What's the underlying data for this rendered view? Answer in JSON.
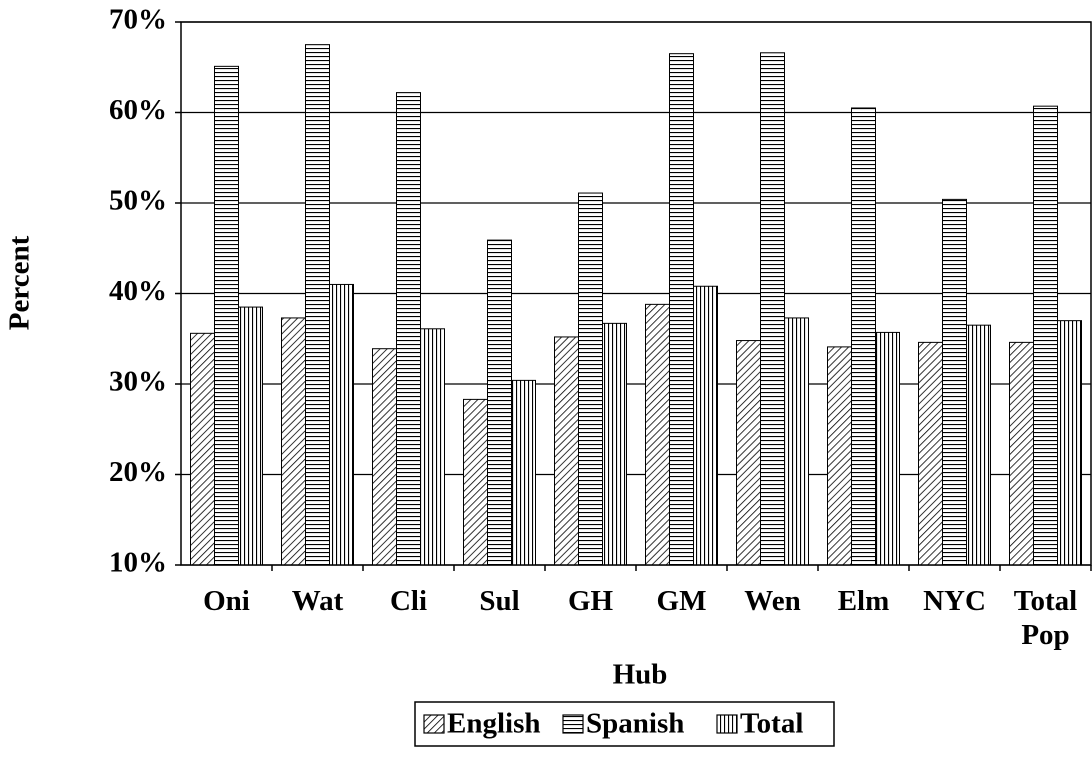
{
  "chart_data": {
    "type": "bar",
    "x_label": "Hub",
    "y_label": "Percent",
    "categories": [
      "Oni",
      "Wat",
      "Cli",
      "Sul",
      "GH",
      "GM",
      "Wen",
      "Elm",
      "NYC",
      "Total Pop"
    ],
    "series": [
      {
        "name": "English",
        "color": "#000000",
        "hatch": "diagonal",
        "values": [
          35.6,
          37.3,
          33.9,
          28.3,
          35.2,
          38.8,
          34.8,
          34.1,
          34.6,
          34.6
        ]
      },
      {
        "name": "Spanish",
        "color": "#000000",
        "hatch": "horizontal",
        "values": [
          65.1,
          67.5,
          62.2,
          45.9,
          51.1,
          66.5,
          66.6,
          60.5,
          50.4,
          60.7
        ]
      },
      {
        "name": "Total",
        "color": "#000000",
        "hatch": "vertical",
        "values": [
          38.5,
          41.0,
          36.1,
          30.4,
          36.7,
          40.8,
          37.3,
          35.7,
          36.5,
          37.0
        ]
      }
    ],
    "ylim": [
      10,
      70
    ],
    "yticks": [
      {
        "value": 10,
        "label": "10%"
      },
      {
        "value": 20,
        "label": "20%"
      },
      {
        "value": 30,
        "label": "30%"
      },
      {
        "value": 40,
        "label": "40%"
      },
      {
        "value": 50,
        "label": "50%"
      },
      {
        "value": 60,
        "label": "60%"
      },
      {
        "value": 70,
        "label": "70%"
      }
    ],
    "grid": true,
    "legend": "bottom"
  }
}
